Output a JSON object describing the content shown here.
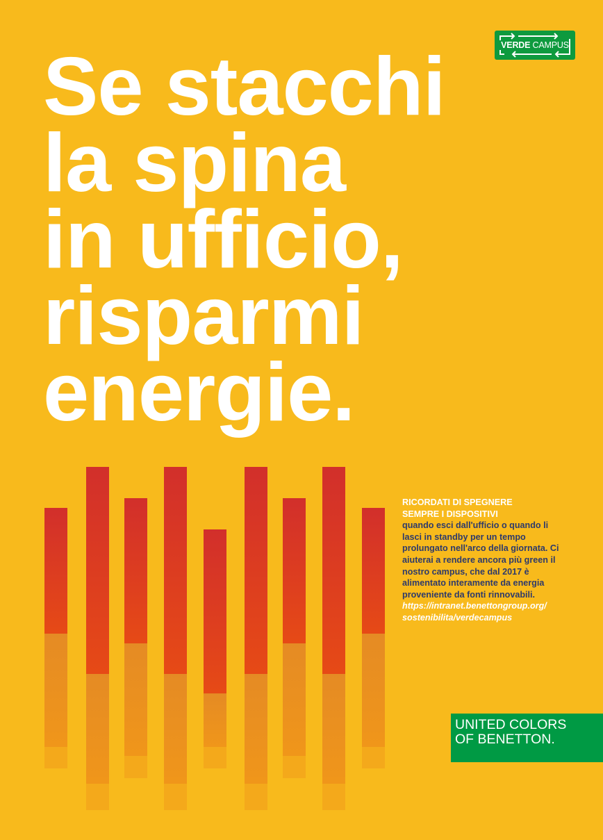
{
  "logo": {
    "bold": "VERDE",
    "light": "CAMPUS",
    "color": "#0E9A3E"
  },
  "headline": [
    "Se stacchi",
    "la spina",
    "in ufficio,",
    "risparmi",
    "energie."
  ],
  "info": {
    "title": [
      "RICORDATI DI SPEGNERE",
      "SEMPRE I DISPOSITIVI"
    ],
    "body": "quando esci dall'ufficio o quando li lasci in standby per un tempo prolungato nell'arco della giornata. Ci aiuterai a rendere ancora più green il nostro campus, che dal 2017 è alimentato interamente da energia proveniente da fonti rinnovabili.",
    "url": [
      "https://intranet.benettongroup.org/",
      "sostenibilita/verdecampus"
    ]
  },
  "brand": {
    "line1": "UNITED COLORS",
    "line2": "OF BENETTON.",
    "color": "#009A44"
  },
  "colors": {
    "background": "#F8BA1C",
    "bar_red": "#D22F2B",
    "bar_orange": "#F0961A",
    "text_dark": "#2E3A6B"
  }
}
